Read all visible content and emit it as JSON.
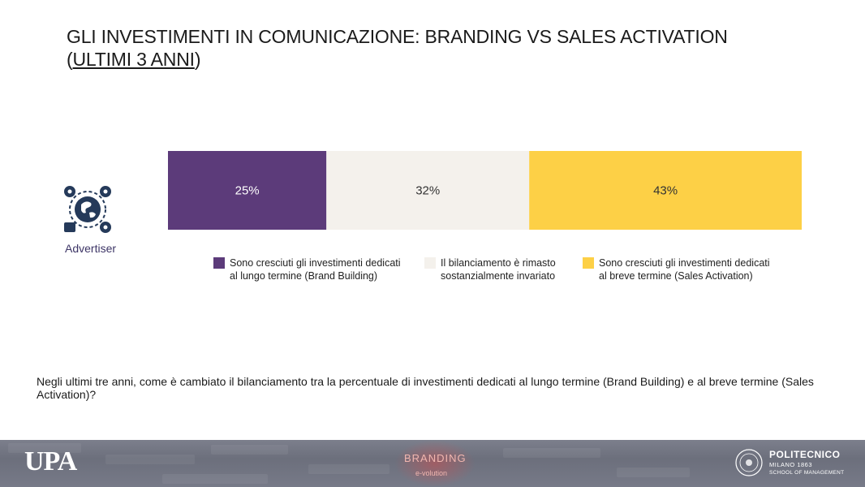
{
  "slide": {
    "title_line1": "GLI INVESTIMENTI IN COMUNICAZIONE: BRANDING VS SALES ACTIVATION",
    "title_line2_open": "(",
    "title_line2_underlined": "ULTIMI 3 ANNI",
    "title_line2_close": ")",
    "question": "Negli ultimi tre anni, come è cambiato il bilanciamento tra la percentuale di investimenti dedicati al lungo termine (Brand Building) e al breve termine (Sales Activation)?"
  },
  "respondent": {
    "label": "Advertiser",
    "icon": "globe-with-gears-icon"
  },
  "chart_data": {
    "type": "bar",
    "orientation": "horizontal",
    "stacked": true,
    "categories": [
      "Advertiser"
    ],
    "series": [
      {
        "name": "Sono cresciuti gli investimenti dedicati al lungo termine (Brand Building)",
        "values": [
          25
        ],
        "label": "25%",
        "color": "#5c3b7a"
      },
      {
        "name": "Il bilanciamento è rimasto sostanzialmente invariato",
        "values": [
          32
        ],
        "label": "32%",
        "color": "#f4f1ec"
      },
      {
        "name": "Sono cresciuti gli investimenti dedicati al breve termine (Sales Activation)",
        "values": [
          43
        ],
        "label": "43%",
        "color": "#fdd046"
      }
    ],
    "xlim": [
      0,
      100
    ],
    "grid": false,
    "legend_position": "bottom"
  },
  "legend": [
    {
      "line1": "Sono cresciuti gli investimenti dedicati",
      "line2": "al lungo termine (Brand Building)",
      "color": "#5c3b7a"
    },
    {
      "line1": "Il bilanciamento è rimasto",
      "line2": "sostanzialmente invariato",
      "color": "#f4f1ec"
    },
    {
      "line1": "Sono cresciuti gli investimenti dedicati",
      "line2": "al breve termine (Sales Activation)",
      "color": "#fdd046"
    }
  ],
  "footer": {
    "left_logo": "UPA",
    "center_logo_line1": "BRANDING",
    "center_logo_line2": "e-volution",
    "right_logo_name": "POLITECNICO",
    "right_logo_line2": "MILANO 1863",
    "right_logo_line3": "SCHOOL OF MANAGEMENT"
  }
}
